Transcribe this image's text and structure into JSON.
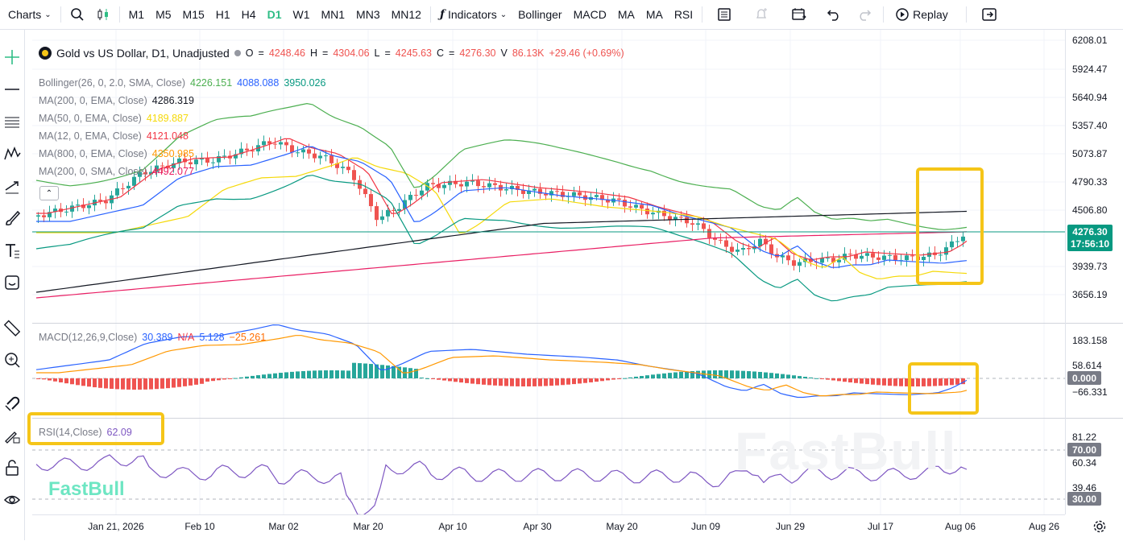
{
  "toolbar": {
    "charts_label": "Charts",
    "timeframes": [
      "M1",
      "M5",
      "M15",
      "H1",
      "H4",
      "D1",
      "W1",
      "MN1",
      "MN3",
      "MN12"
    ],
    "active_timeframe": "D1",
    "indicators_label": "Indicators",
    "indicator_buttons": [
      "Bollinger",
      "MACD",
      "MA",
      "MA",
      "RSI"
    ],
    "replay_label": "Replay"
  },
  "main": {
    "symbol_title": "Gold vs US Dollar, D1, Unadjusted",
    "ohlc": {
      "o_label": "O",
      "o": "4248.46",
      "h_label": "H",
      "h": "4304.06",
      "l_label": "L",
      "l": "4245.63",
      "c_label": "C",
      "c": "4276.30",
      "v_label": "V",
      "v": "86.13K",
      "change": "+29.46 (+0.69%)"
    },
    "indicators": [
      {
        "name": "Bollinger(26, 0, 2.0, SMA, Close)",
        "values": [
          "4226.151",
          "4088.088",
          "3950.026"
        ],
        "colors": [
          "#4caf50",
          "#2962ff",
          "#089981"
        ]
      },
      {
        "name": "MA(200, 0, EMA, Close)",
        "values": [
          "4286.319"
        ],
        "colors": [
          "#131722"
        ]
      },
      {
        "name": "MA(50, 0, EMA, Close)",
        "values": [
          "4189.887"
        ],
        "colors": [
          "#f5d90a"
        ]
      },
      {
        "name": "MA(12, 0, EMA, Close)",
        "values": [
          "4121.048"
        ],
        "colors": [
          "#f23645"
        ]
      },
      {
        "name": "MA(800, 0, EMA, Close)",
        "values": [
          "4350.985"
        ],
        "colors": [
          "#ff9800"
        ]
      },
      {
        "name": "MA(200, 0, SMA, Close)",
        "values": [
          "4492.077"
        ],
        "colors": [
          "#e91e63"
        ]
      }
    ],
    "price_ticks": [
      "6208.01",
      "5924.47",
      "5640.94",
      "5357.40",
      "5073.87",
      "4790.33",
      "4506.80",
      "3939.73",
      "3656.19"
    ],
    "last_price": "4276.30",
    "countdown": "17:56:10"
  },
  "macd": {
    "label": "MACD(12,26,9,Close)",
    "values": [
      "30.389",
      "N/A",
      "5.128",
      "−25.261"
    ],
    "colors": [
      "#2962ff",
      "#f23645",
      "#2962ff",
      "#ff6d00"
    ],
    "ticks": [
      "183.158",
      "58.614",
      "−66.331"
    ],
    "zero_tag": "0.000"
  },
  "rsi": {
    "label": "RSI(14,Close)",
    "value": "62.09",
    "ticks": [
      "81.22",
      "60.34",
      "39.46"
    ],
    "upper_tag": "70.00",
    "lower_tag": "30.00",
    "line_color": "#7e57c2"
  },
  "time_axis": [
    "Jan 21, 2026",
    "Feb 10",
    "Mar 02",
    "Mar 20",
    "Apr 10",
    "Apr 30",
    "May 20",
    "Jun 09",
    "Jun 29",
    "Jul 17",
    "Aug 06",
    "Aug 26"
  ],
  "watermark": "FastBull",
  "colors": {
    "up": "#26a69a",
    "down": "#ef5350",
    "accent": "#2ebd85",
    "highlight": "#f5c518"
  }
}
